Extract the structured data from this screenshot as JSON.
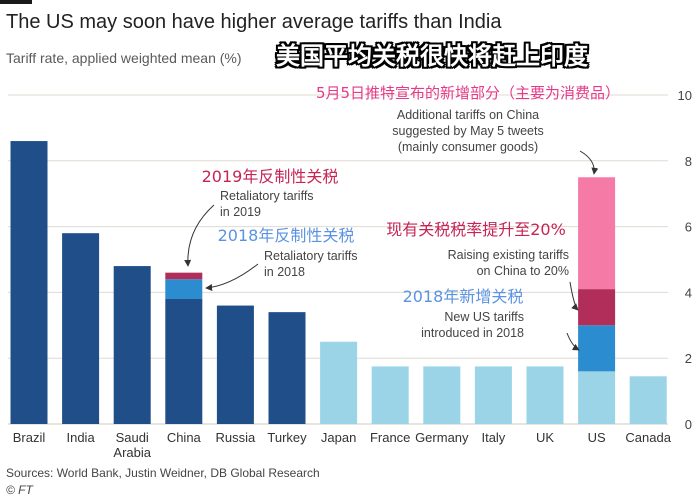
{
  "header": {
    "title": "The US may soon have higher average tariffs than India",
    "subtitle": "Tariff rate, applied weighted mean (%)",
    "overlay_title_cn": "美国平均关税很快将赶上印度"
  },
  "footer": {
    "source": "Sources: World Bank, Justin Weidner, DB Global Research",
    "credit": "© FT"
  },
  "colors": {
    "dark_bar": "#1f4e89",
    "light_bar": "#9ad4e6",
    "retaliatory_2019": "#b12e5b",
    "retaliatory_2018": "#2b8cd0",
    "raising_to_20": "#b12e5b",
    "may5_additional": "#f57aa5",
    "new_us_2018": "#2b8cd0",
    "cn_pink": "#e63a88",
    "cn_red": "#c62455",
    "cn_blue": "#5b93e0",
    "grid": "#e0dbd2",
    "text": "#333333"
  },
  "chart_data": {
    "type": "bar",
    "stacked": true,
    "categories": [
      "Brazil",
      "India",
      "Saudi Arabia",
      "China",
      "Russia",
      "Turkey",
      "Japan",
      "France",
      "Germany",
      "Italy",
      "UK",
      "US",
      "Canada"
    ],
    "tick_labels": [
      [
        "Brazil"
      ],
      [
        "India"
      ],
      [
        "Saudi",
        "Arabia"
      ],
      [
        "China"
      ],
      [
        "Russia"
      ],
      [
        "Turkey"
      ],
      [
        "Japan"
      ],
      [
        "France"
      ],
      [
        "Germany"
      ],
      [
        "Italy"
      ],
      [
        "UK"
      ],
      [
        "US"
      ],
      [
        "Canada"
      ]
    ],
    "base_values": [
      8.6,
      5.8,
      4.8,
      3.8,
      3.6,
      3.4,
      2.5,
      1.75,
      1.75,
      1.75,
      1.75,
      1.6,
      1.45
    ],
    "base_color_group": [
      "dark",
      "dark",
      "dark",
      "dark",
      "dark",
      "dark",
      "light",
      "light",
      "light",
      "light",
      "light",
      "light",
      "light"
    ],
    "stacks": [
      {
        "category": "China",
        "segments": [
          {
            "value": 0.6,
            "color_key": "retaliatory_2018"
          },
          {
            "value": 0.2,
            "color_key": "retaliatory_2019"
          }
        ]
      },
      {
        "category": "US",
        "segments": [
          {
            "value": 1.4,
            "color_key": "new_us_2018"
          },
          {
            "value": 1.1,
            "color_key": "raising_to_20"
          },
          {
            "value": 3.4,
            "color_key": "may5_additional"
          }
        ]
      }
    ],
    "ylim": [
      0,
      10
    ],
    "yticks": [
      0,
      2,
      4,
      6,
      8,
      10
    ],
    "annotations": [
      {
        "cn": "5月5日推特宣布的新增部分（主要为消费品）",
        "cn_color": "cn_pink",
        "en": [
          "Additional tariffs on China",
          "suggested by May 5 tweets",
          "(mainly consumer goods)"
        ]
      },
      {
        "cn": "2019年反制性关税",
        "cn_color": "cn_red",
        "en": [
          "Retaliatory tariffs",
          "in 2019"
        ]
      },
      {
        "cn": "2018年反制性关税",
        "cn_color": "cn_blue",
        "en": [
          "Retaliatory tariffs",
          "in 2018"
        ]
      },
      {
        "cn": "现有关税税率提升至20%",
        "cn_color": "cn_red",
        "en": [
          "Raising existing tariffs",
          "on China to 20%"
        ]
      },
      {
        "cn": "2018年新增关税",
        "cn_color": "cn_blue",
        "en": [
          "New US tariffs",
          "introduced in 2018"
        ]
      }
    ]
  }
}
